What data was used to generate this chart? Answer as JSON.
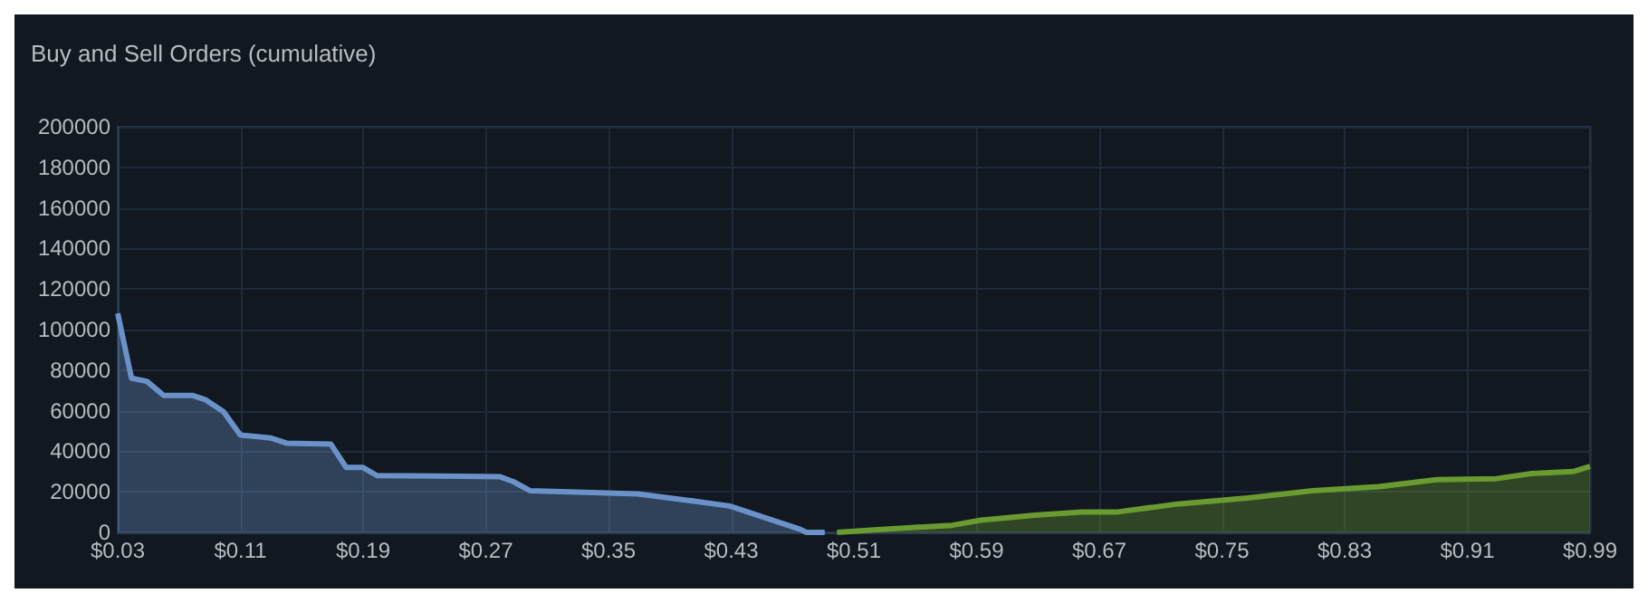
{
  "chart_data": {
    "type": "area",
    "title": "Buy and Sell Orders (cumulative)",
    "xlim": [
      0.03,
      0.99
    ],
    "xticks": [
      {
        "value": 0.03,
        "label": "$0.03"
      },
      {
        "value": 0.11,
        "label": "$0.11"
      },
      {
        "value": 0.19,
        "label": "$0.19"
      },
      {
        "value": 0.27,
        "label": "$0.27"
      },
      {
        "value": 0.35,
        "label": "$0.35"
      },
      {
        "value": 0.43,
        "label": "$0.43"
      },
      {
        "value": 0.51,
        "label": "$0.51"
      },
      {
        "value": 0.59,
        "label": "$0.59"
      },
      {
        "value": 0.67,
        "label": "$0.67"
      },
      {
        "value": 0.75,
        "label": "$0.75"
      },
      {
        "value": 0.83,
        "label": "$0.83"
      },
      {
        "value": 0.91,
        "label": "$0.91"
      },
      {
        "value": 0.99,
        "label": "$0.99"
      }
    ],
    "ylim": [
      0,
      200000
    ],
    "yticks": [
      0,
      20000,
      40000,
      60000,
      80000,
      100000,
      120000,
      140000,
      160000,
      180000,
      200000
    ],
    "grid": true,
    "marker": "none",
    "series": [
      {
        "color": "#6a92c8",
        "x": [
          0.03,
          0.039,
          0.049,
          0.06,
          0.079,
          0.087,
          0.099,
          0.11,
          0.13,
          0.14,
          0.169,
          0.179,
          0.19,
          0.199,
          0.279,
          0.288,
          0.299,
          0.369,
          0.4,
          0.429,
          0.475,
          0.479,
          0.491
        ],
        "values": [
          108000,
          76000,
          74500,
          67500,
          67500,
          65500,
          59500,
          48000,
          46500,
          44000,
          43500,
          32000,
          32000,
          28000,
          27500,
          25000,
          20500,
          19000,
          16000,
          13000,
          1500,
          0,
          0
        ]
      },
      {
        "color": "#6a9a30",
        "x": [
          0.499,
          0.528,
          0.574,
          0.593,
          0.628,
          0.659,
          0.681,
          0.721,
          0.767,
          0.809,
          0.852,
          0.89,
          0.929,
          0.952,
          0.979,
          0.99
        ],
        "values": [
          0,
          1500,
          3500,
          6000,
          8500,
          10000,
          10000,
          14000,
          17000,
          20500,
          22500,
          26000,
          26500,
          29000,
          30000,
          32500
        ]
      }
    ]
  }
}
